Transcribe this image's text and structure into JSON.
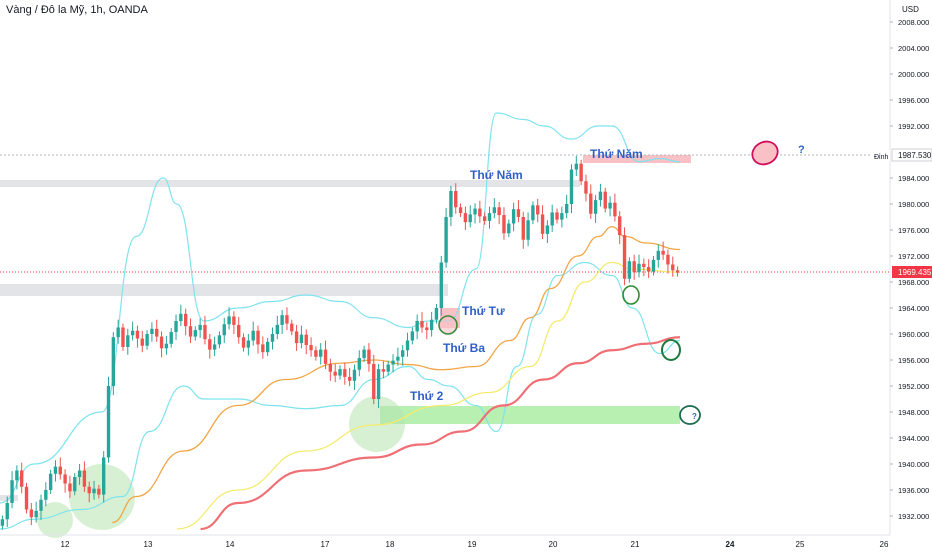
{
  "header": {
    "symbol_title": "Vàng / Đô la Mỹ, 1h, OANDA"
  },
  "price_axis": {
    "currency": "USD",
    "ticks": [
      "2008.000",
      "2004.000",
      "2000.000",
      "1996.000",
      "1992.000",
      "1984.000",
      "1980.000",
      "1976.000",
      "1972.000",
      "1968.000",
      "1964.000",
      "1960.000",
      "1956.000",
      "1952.000",
      "1948.000",
      "1944.000",
      "1940.000",
      "1936.000",
      "1932.000"
    ],
    "peak_tag_label": "Đỉnh",
    "peak_tag_value": "1987.530",
    "last_price_value": "1969.435"
  },
  "time_axis": {
    "ticks": [
      "12",
      "13",
      "14",
      "17",
      "18",
      "19",
      "20",
      "21",
      "24",
      "25",
      "26"
    ]
  },
  "annotations": {
    "day_mon": "Thứ 2",
    "day_wed": "Thứ Tư",
    "day_tue": "Thứ Ba",
    "day_thu_1": "Thứ Năm",
    "day_thu_2": "Thứ Năm",
    "q1": "?",
    "q2": "?"
  },
  "colors": {
    "up": "#26a69a",
    "down": "#ef5350",
    "bollinger": "#7fe3ee",
    "ema_short": "#f0a646",
    "ema_mid": "#f4eb6e",
    "ema_long": "#ef6f74",
    "label": "#2f5fc7",
    "last_price": "#f23645",
    "support_zone": "#b7f0b1",
    "resistance_zone": "#f9c1c5",
    "grey_zone": "#e3e4e8"
  },
  "chart_data": {
    "type": "candlestick",
    "title": "Vàng / Đô la Mỹ, 1h, OANDA",
    "yrange": [
      1930,
      2010
    ],
    "x_ticks": [
      "12",
      "13",
      "14",
      "17",
      "18",
      "19",
      "20",
      "21",
      "24",
      "25",
      "26"
    ],
    "last_price": 1969.435,
    "peak_level": 1987.53,
    "closes": [
      1931.5,
      1934,
      1937.5,
      1939,
      1936.5,
      1933,
      1931.8,
      1932.8,
      1934.5,
      1936,
      1938.5,
      1939.6,
      1938.4,
      1937,
      1935.8,
      1938,
      1939,
      1936.5,
      1935.5,
      1936.2,
      1935.3,
      1941,
      1952,
      1959.5,
      1961,
      1958,
      1959.8,
      1960.5,
      1959.3,
      1958.2,
      1960,
      1960.8,
      1959.6,
      1957.8,
      1958.5,
      1960.3,
      1962,
      1963.1,
      1961.2,
      1959.6,
      1960.6,
      1961.4,
      1959.2,
      1957.6,
      1958.4,
      1959.8,
      1961.5,
      1962.7,
      1961.4,
      1959.5,
      1957.9,
      1959,
      1960.5,
      1958.4,
      1957.2,
      1958.8,
      1960,
      1961.4,
      1962.9,
      1961.6,
      1960.4,
      1958.6,
      1959.9,
      1958.3,
      1957.5,
      1956.5,
      1957.6,
      1955.4,
      1954.2,
      1953.6,
      1954.6,
      1953.4,
      1952.8,
      1954.5,
      1956.3,
      1957.6,
      1955.4,
      1950,
      1954.6,
      1954.2,
      1955.3,
      1955.9,
      1956.5,
      1957.5,
      1959,
      1960.4,
      1962,
      1961,
      1960.6,
      1962.2,
      1964,
      1971,
      1978,
      1982,
      1979.5,
      1978.6,
      1977.2,
      1978.4,
      1979.3,
      1978.1,
      1977.4,
      1978.6,
      1979.5,
      1978.3,
      1975.5,
      1977,
      1979.2,
      1978,
      1974.5,
      1977.5,
      1979.8,
      1978.4,
      1975.4,
      1976.7,
      1978.7,
      1977.6,
      1978.6,
      1980,
      1985.3,
      1986.2,
      1983.5,
      1981.6,
      1978.5,
      1980.6,
      1981.9,
      1979.3,
      1980.2,
      1978.1,
      1975.2,
      1968.5,
      1971.2,
      1969.5,
      1970.8,
      1970.3,
      1969.6,
      1971.4,
      1972.8,
      1972.2,
      1970.7,
      1969.8,
      1969.435
    ],
    "series": [
      {
        "name": "ema-short",
        "x_frac": [
          0.165,
          0.2,
          0.27,
          0.35,
          0.42,
          0.5,
          0.55,
          0.6,
          0.65,
          0.7,
          0.75,
          0.78,
          0.81,
          0.85,
          0.88,
          0.9,
          0.92,
          0.95,
          1.0
        ],
        "values": [
          1931,
          1935,
          1942,
          1949,
          1953,
          1955.5,
          1956,
          1955.3,
          1954.5,
          1955,
          1959,
          1962.5,
          1967,
          1972,
          1975,
          1976.5,
          1975,
          1974,
          1973
        ]
      },
      {
        "name": "ema-mid",
        "x_frac": [
          0.26,
          0.35,
          0.45,
          0.55,
          0.65,
          0.72,
          0.78,
          0.82,
          0.86,
          0.9,
          0.93,
          1.0
        ],
        "values": [
          1930,
          1936,
          1942,
          1946,
          1949,
          1951,
          1955,
          1962,
          1968,
          1971,
          1970,
          1969.5
        ]
      },
      {
        "name": "ema-long",
        "x_frac": [
          0.295,
          0.35,
          0.45,
          0.55,
          0.62,
          0.68,
          0.74,
          0.8,
          0.85,
          0.9,
          0.95,
          1.0
        ],
        "values": [
          1930,
          1934,
          1939,
          1941,
          1943,
          1945,
          1949,
          1953,
          1955.5,
          1957.5,
          1958.5,
          1959.5
        ]
      },
      {
        "name": "bollinger-upper",
        "x_frac": [
          0.0,
          0.05,
          0.15,
          0.2,
          0.24,
          0.26,
          0.3,
          0.35,
          0.4,
          0.45,
          0.5,
          0.55,
          0.6,
          0.63,
          0.66,
          0.7,
          0.73,
          0.77,
          0.8,
          0.84,
          0.88,
          0.9,
          0.94,
          0.97,
          1.0
        ],
        "values": [
          1934,
          1940,
          1948,
          1975,
          1984,
          1980,
          1962,
          1964,
          1965,
          1966,
          1965,
          1962.5,
          1961,
          1962,
          1962,
          1970,
          1994,
          1993,
          1992,
          1990,
          1992,
          1992,
          1986.5,
          1987,
          1986.5
        ]
      },
      {
        "name": "bollinger-lower",
        "x_frac": [
          0.0,
          0.05,
          0.12,
          0.18,
          0.22,
          0.27,
          0.3,
          0.35,
          0.4,
          0.45,
          0.5,
          0.55,
          0.6,
          0.63,
          0.66,
          0.7,
          0.73,
          0.76,
          0.79,
          0.82,
          0.86,
          0.9,
          0.93,
          0.97,
          1.0
        ],
        "values": [
          1930,
          1931.5,
          1933,
          1935,
          1945,
          1952,
          1950,
          1950,
          1949,
          1948.5,
          1949,
          1953,
          1955,
          1953,
          1952,
          1949,
          1945,
          1955,
          1963,
          1969,
          1971,
          1969,
          1964,
          1957,
          1959
        ]
      }
    ]
  }
}
